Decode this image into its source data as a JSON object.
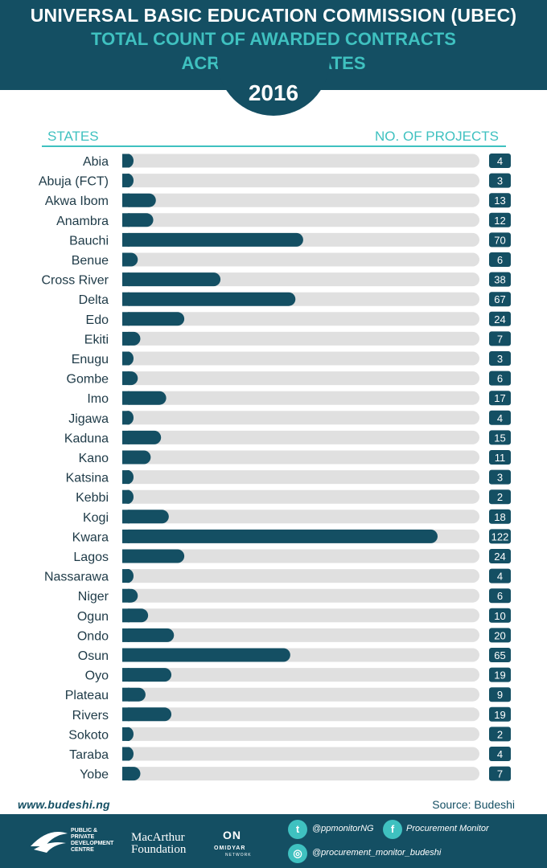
{
  "header": {
    "title": "UNIVERSAL BASIC EDUCATION COMMISSION (UBEC)",
    "subtitle_line1": "TOTAL COUNT OF AWARDED CONTRACTS",
    "subtitle_line2": "ACROSS (32) STATES",
    "year": "2016"
  },
  "columns": {
    "left": "STATES",
    "right": "NO. OF PROJECTS"
  },
  "colors": {
    "dark": "#144f63",
    "accent": "#3fc1c0",
    "track": "#e0e0e0"
  },
  "chart_data": {
    "type": "bar",
    "orientation": "horizontal",
    "title": "TOTAL COUNT OF AWARDED CONTRACTS ACROSS (32) STATES",
    "xlabel": "NO. OF PROJECTS",
    "ylabel": "STATES",
    "xlim": [
      0,
      122
    ],
    "grid": false,
    "categories": [
      "Abia",
      "Abuja (FCT)",
      "Akwa Ibom",
      "Anambra",
      "Bauchi",
      "Benue",
      "Cross River",
      "Delta",
      "Edo",
      "Ekiti",
      "Enugu",
      "Gombe",
      "Imo",
      "Jigawa",
      "Kaduna",
      "Kano",
      "Katsina",
      "Kebbi",
      "Kogi",
      "Kwara",
      "Lagos",
      "Nassarawa",
      "Niger",
      "Ogun",
      "Ondo",
      "Osun",
      "Oyo",
      "Plateau",
      "Rivers",
      "Sokoto",
      "Taraba",
      "Yobe"
    ],
    "values": [
      4,
      3,
      13,
      12,
      70,
      6,
      38,
      67,
      24,
      7,
      3,
      6,
      17,
      4,
      15,
      11,
      3,
      2,
      18,
      122,
      24,
      4,
      6,
      10,
      20,
      65,
      19,
      9,
      19,
      2,
      4,
      7
    ]
  },
  "footer": {
    "url": "www.budeshi.ng",
    "source": "Source: Budeshi",
    "ppdc": "PUBLIC & PRIVATE DEVELOPMENT CENTRE",
    "macarthur_line1": "MacArthur",
    "macarthur_line2": "Foundation",
    "omidyar_mark": "ON",
    "omidyar_name": "OMIDYAR",
    "omidyar_sub": "NETWORK",
    "twitter": "@ppmonitorNG",
    "facebook": "Procurement Monitor",
    "instagram": "@procurement_monitor_budeshi"
  },
  "icons": {
    "twitter": "twitter-icon",
    "facebook": "facebook-icon",
    "instagram": "instagram-icon",
    "logo": "ppdc-logo-icon"
  }
}
